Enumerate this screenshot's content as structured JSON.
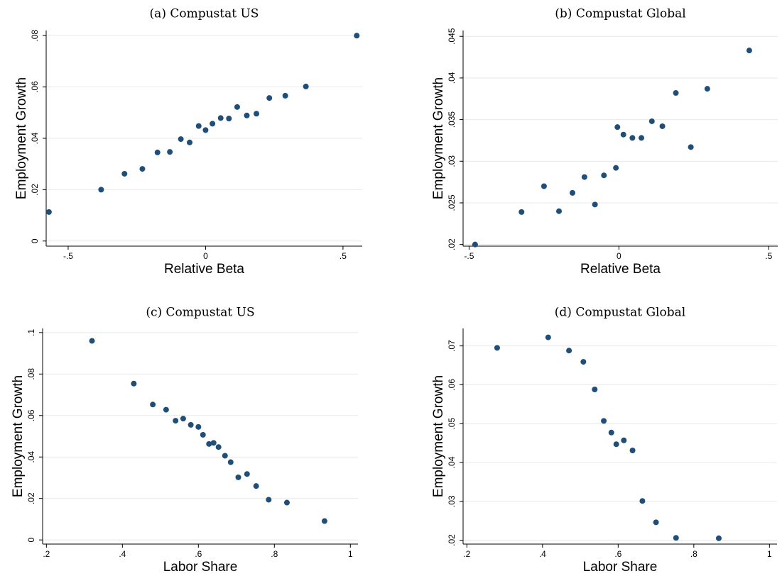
{
  "colors": {
    "marker": "#1f4e79",
    "grid": "#e8e8e8",
    "axis": "#000000"
  },
  "chart_data": [
    {
      "type": "scatter",
      "title": "(a) Compustat US",
      "xlabel": "Relative Beta",
      "ylabel": "Employment Growth",
      "xlim": [
        -0.58,
        0.57
      ],
      "ylim": [
        -0.002,
        0.082
      ],
      "xticks": [
        -0.5,
        0,
        0.5
      ],
      "xtick_labels": [
        "-.5",
        "0",
        ".5"
      ],
      "yticks": [
        0,
        0.02,
        0.04,
        0.06,
        0.08
      ],
      "ytick_labels": [
        "0",
        ".02",
        ".04",
        ".06",
        ".08"
      ],
      "grid": true,
      "points": [
        {
          "x": -0.57,
          "y": 0.0113
        },
        {
          "x": -0.38,
          "y": 0.02
        },
        {
          "x": -0.295,
          "y": 0.0262
        },
        {
          "x": -0.23,
          "y": 0.0281
        },
        {
          "x": -0.175,
          "y": 0.0345
        },
        {
          "x": -0.13,
          "y": 0.0347
        },
        {
          "x": -0.09,
          "y": 0.0397
        },
        {
          "x": -0.058,
          "y": 0.0384
        },
        {
          "x": -0.025,
          "y": 0.0448
        },
        {
          "x": 0.0,
          "y": 0.0432
        },
        {
          "x": 0.025,
          "y": 0.0457
        },
        {
          "x": 0.055,
          "y": 0.0479
        },
        {
          "x": 0.085,
          "y": 0.0477
        },
        {
          "x": 0.115,
          "y": 0.0522
        },
        {
          "x": 0.15,
          "y": 0.0489
        },
        {
          "x": 0.185,
          "y": 0.0496
        },
        {
          "x": 0.232,
          "y": 0.0557
        },
        {
          "x": 0.29,
          "y": 0.0566
        },
        {
          "x": 0.365,
          "y": 0.0602
        },
        {
          "x": 0.55,
          "y": 0.08
        }
      ]
    },
    {
      "type": "scatter",
      "title": "(b) Compustat Global",
      "xlabel": "Relative Beta",
      "ylabel": "Employment Growth",
      "xlim": [
        -0.52,
        0.53
      ],
      "ylim": [
        0.0198,
        0.0457
      ],
      "xticks": [
        -0.5,
        0,
        0.5
      ],
      "xtick_labels": [
        "-.5",
        "0",
        ".5"
      ],
      "yticks": [
        0.02,
        0.025,
        0.03,
        0.035,
        0.04,
        0.045
      ],
      "ytick_labels": [
        ".02",
        ".025",
        ".03",
        ".035",
        ".04",
        ".045"
      ],
      "grid": true,
      "points": [
        {
          "x": -0.48,
          "y": 0.02
        },
        {
          "x": -0.325,
          "y": 0.0239
        },
        {
          "x": -0.25,
          "y": 0.027
        },
        {
          "x": -0.2,
          "y": 0.024
        },
        {
          "x": -0.155,
          "y": 0.0262
        },
        {
          "x": -0.115,
          "y": 0.0281
        },
        {
          "x": -0.08,
          "y": 0.0248
        },
        {
          "x": -0.05,
          "y": 0.0283
        },
        {
          "x": -0.01,
          "y": 0.0292
        },
        {
          "x": -0.005,
          "y": 0.0341
        },
        {
          "x": 0.015,
          "y": 0.0332
        },
        {
          "x": 0.045,
          "y": 0.0328
        },
        {
          "x": 0.075,
          "y": 0.0328
        },
        {
          "x": 0.11,
          "y": 0.0348
        },
        {
          "x": 0.145,
          "y": 0.0342
        },
        {
          "x": 0.19,
          "y": 0.0382
        },
        {
          "x": 0.24,
          "y": 0.0317
        },
        {
          "x": 0.295,
          "y": 0.0387
        },
        {
          "x": 0.435,
          "y": 0.0433
        }
      ]
    },
    {
      "type": "scatter",
      "title": "(c) Compustat US",
      "xlabel": "Labor Share",
      "ylabel": "Employment Growth",
      "xlim": [
        0.19,
        1.02
      ],
      "ylim": [
        -0.002,
        0.102
      ],
      "xticks": [
        0.2,
        0.4,
        0.6,
        0.8,
        1.0
      ],
      "xtick_labels": [
        ".2",
        ".4",
        ".6",
        ".8",
        "1"
      ],
      "yticks": [
        0,
        0.02,
        0.04,
        0.06,
        0.08,
        0.1
      ],
      "ytick_labels": [
        "0",
        ".02",
        ".04",
        ".06",
        ".08",
        ".1"
      ],
      "grid": true,
      "points": [
        {
          "x": 0.32,
          "y": 0.096
        },
        {
          "x": 0.43,
          "y": 0.0754
        },
        {
          "x": 0.48,
          "y": 0.0653
        },
        {
          "x": 0.515,
          "y": 0.0628
        },
        {
          "x": 0.54,
          "y": 0.0575
        },
        {
          "x": 0.56,
          "y": 0.0585
        },
        {
          "x": 0.58,
          "y": 0.0555
        },
        {
          "x": 0.6,
          "y": 0.0545
        },
        {
          "x": 0.612,
          "y": 0.0507
        },
        {
          "x": 0.628,
          "y": 0.0463
        },
        {
          "x": 0.64,
          "y": 0.0468
        },
        {
          "x": 0.653,
          "y": 0.0448
        },
        {
          "x": 0.67,
          "y": 0.0406
        },
        {
          "x": 0.685,
          "y": 0.0375
        },
        {
          "x": 0.705,
          "y": 0.0302
        },
        {
          "x": 0.728,
          "y": 0.0318
        },
        {
          "x": 0.752,
          "y": 0.026
        },
        {
          "x": 0.785,
          "y": 0.0194
        },
        {
          "x": 0.833,
          "y": 0.018
        },
        {
          "x": 0.932,
          "y": 0.0091
        }
      ]
    },
    {
      "type": "scatter",
      "title": "(d) Compustat Global",
      "xlabel": "Labor Share",
      "ylabel": "Employment Growth",
      "xlim": [
        0.19,
        1.02
      ],
      "ylim": [
        0.019,
        0.0745
      ],
      "xticks": [
        0.2,
        0.4,
        0.6,
        0.8,
        1.0
      ],
      "xtick_labels": [
        ".2",
        ".4",
        ".6",
        ".8",
        "1"
      ],
      "yticks": [
        0.02,
        0.03,
        0.04,
        0.05,
        0.06,
        0.07
      ],
      "ytick_labels": [
        ".02",
        ".03",
        ".04",
        ".05",
        ".06",
        ".07"
      ],
      "grid": true,
      "points": [
        {
          "x": 0.28,
          "y": 0.0695
        },
        {
          "x": 0.415,
          "y": 0.0722
        },
        {
          "x": 0.47,
          "y": 0.0688
        },
        {
          "x": 0.508,
          "y": 0.0659
        },
        {
          "x": 0.538,
          "y": 0.0588
        },
        {
          "x": 0.562,
          "y": 0.0507
        },
        {
          "x": 0.582,
          "y": 0.0477
        },
        {
          "x": 0.595,
          "y": 0.0447
        },
        {
          "x": 0.615,
          "y": 0.0457
        },
        {
          "x": 0.638,
          "y": 0.0431
        },
        {
          "x": 0.664,
          "y": 0.0301
        },
        {
          "x": 0.7,
          "y": 0.0246
        },
        {
          "x": 0.753,
          "y": 0.0206
        },
        {
          "x": 0.866,
          "y": 0.0205
        }
      ]
    }
  ]
}
